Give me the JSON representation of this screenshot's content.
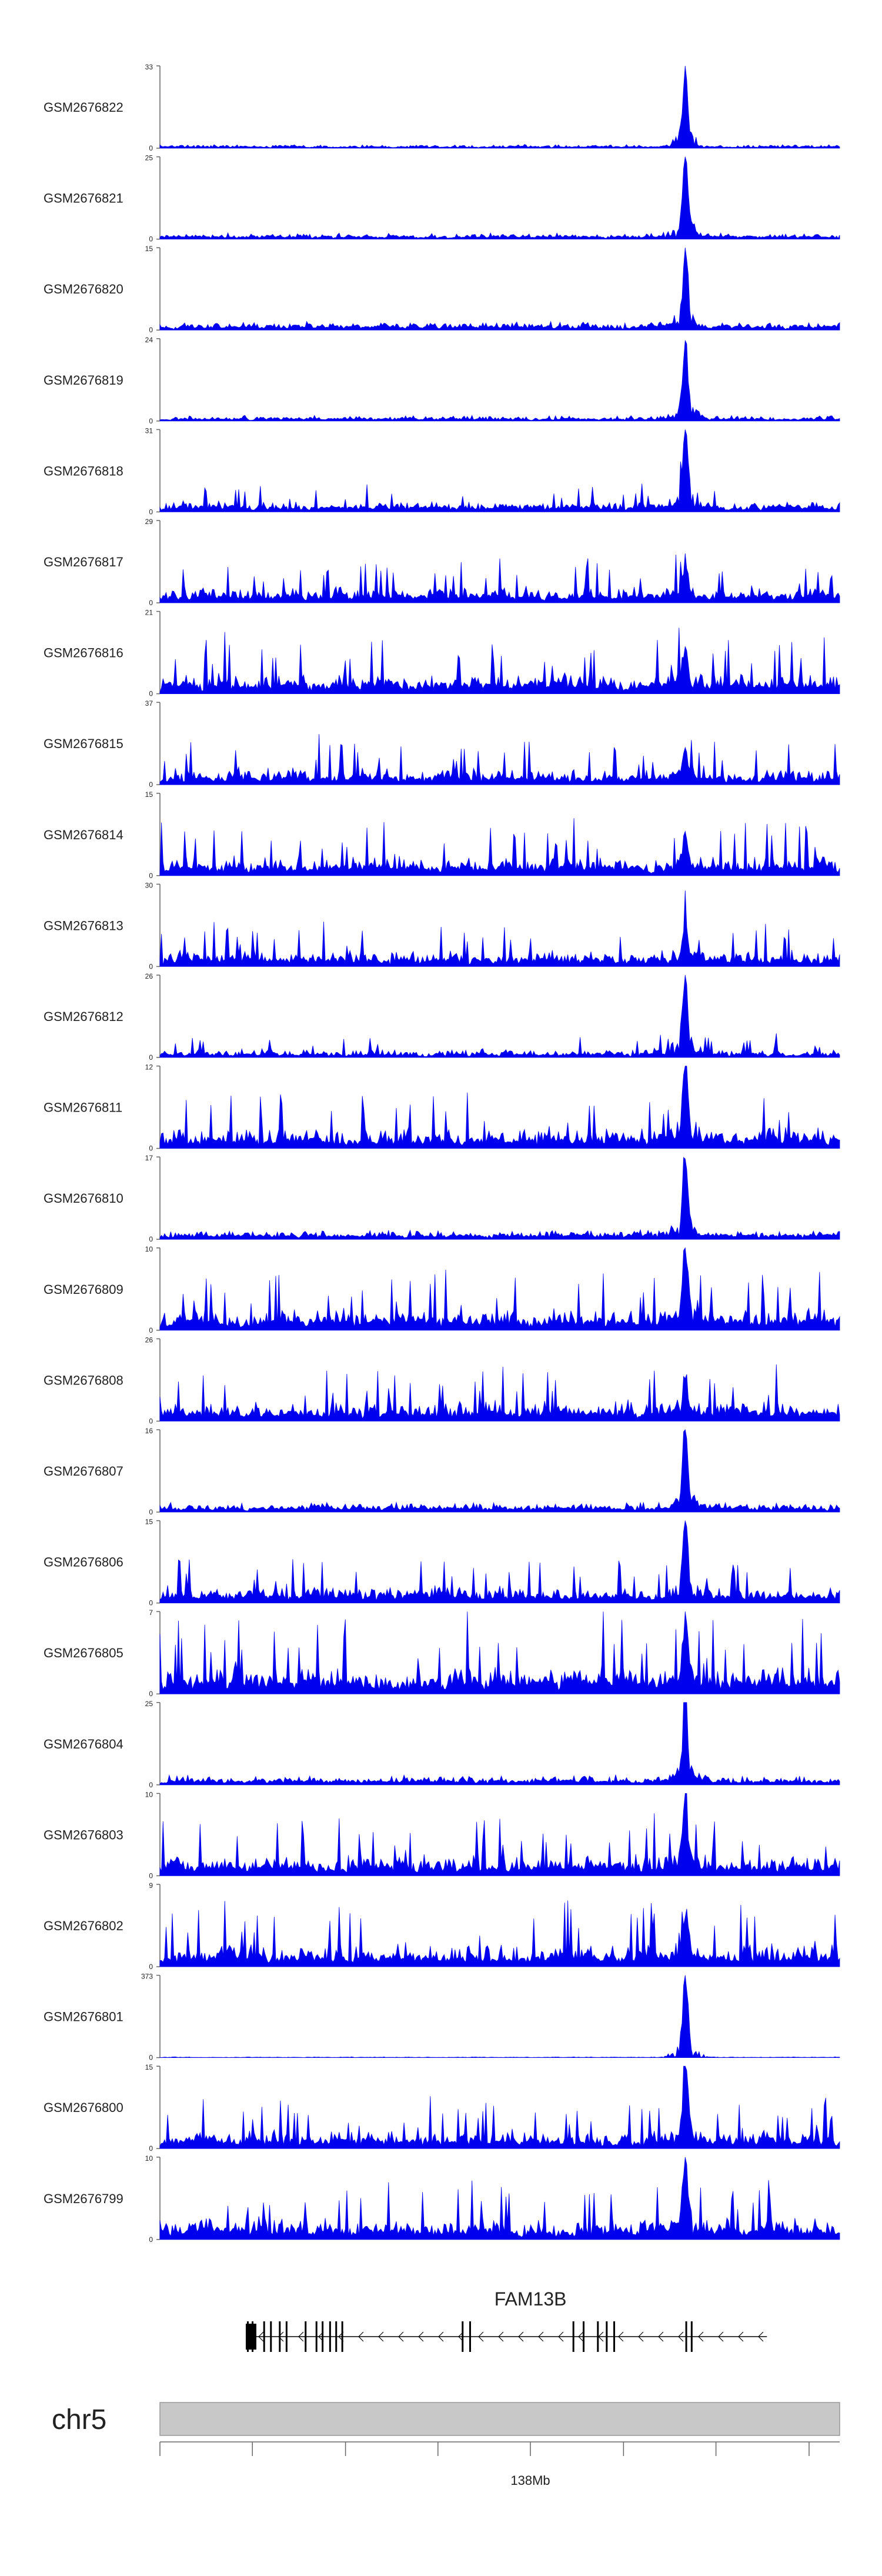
{
  "colors": {
    "signal": "#0000ee",
    "gene": "#000000",
    "ideogram": "#c8c8c8",
    "axis": "#666666"
  },
  "chart_data": {
    "type": "area",
    "title": "",
    "tracks": [
      {
        "name": "GSM2676822",
        "ymax": "33",
        "peak": 1.0,
        "noise": 0.1,
        "spiky": false
      },
      {
        "name": "GSM2676821",
        "ymax": "25",
        "peak": 1.0,
        "noise": 0.16,
        "spiky": false
      },
      {
        "name": "GSM2676820",
        "ymax": "15",
        "peak": 0.95,
        "noise": 0.22,
        "spiky": false
      },
      {
        "name": "GSM2676819",
        "ymax": "24",
        "peak": 0.95,
        "noise": 0.14,
        "spiky": false
      },
      {
        "name": "GSM2676818",
        "ymax": "31",
        "peak": 1.0,
        "noise": 0.28,
        "spiky": true
      },
      {
        "name": "GSM2676817",
        "ymax": "29",
        "peak": 0.4,
        "noise": 0.45,
        "spiky": true
      },
      {
        "name": "GSM2676816",
        "ymax": "21",
        "peak": 0.45,
        "noise": 0.55,
        "spiky": true
      },
      {
        "name": "GSM2676815",
        "ymax": "37",
        "peak": 0.35,
        "noise": 0.45,
        "spiky": true
      },
      {
        "name": "GSM2676814",
        "ymax": "15",
        "peak": 0.4,
        "noise": 0.55,
        "spiky": true
      },
      {
        "name": "GSM2676813",
        "ymax": "30",
        "peak": 0.4,
        "noise": 0.45,
        "spiky": true
      },
      {
        "name": "GSM2676812",
        "ymax": "26",
        "peak": 0.95,
        "noise": 0.22,
        "spiky": true
      },
      {
        "name": "GSM2676811",
        "ymax": "12",
        "peak": 0.95,
        "noise": 0.55,
        "spiky": true
      },
      {
        "name": "GSM2676810",
        "ymax": "17",
        "peak": 0.95,
        "noise": 0.25,
        "spiky": false
      },
      {
        "name": "GSM2676809",
        "ymax": "10",
        "peak": 0.95,
        "noise": 0.6,
        "spiky": true
      },
      {
        "name": "GSM2676808",
        "ymax": "26",
        "peak": 0.45,
        "noise": 0.55,
        "spiky": true
      },
      {
        "name": "GSM2676807",
        "ymax": "16",
        "peak": 0.95,
        "noise": 0.25,
        "spiky": false
      },
      {
        "name": "GSM2676806",
        "ymax": "15",
        "peak": 0.95,
        "noise": 0.45,
        "spiky": true
      },
      {
        "name": "GSM2676805",
        "ymax": "7",
        "peak": 0.75,
        "noise": 0.75,
        "spiky": true
      },
      {
        "name": "GSM2676804",
        "ymax": "25",
        "peak": 0.95,
        "noise": 0.25,
        "spiky": false
      },
      {
        "name": "GSM2676803",
        "ymax": "10",
        "peak": 0.95,
        "noise": 0.6,
        "spiky": true
      },
      {
        "name": "GSM2676802",
        "ymax": "9",
        "peak": 0.55,
        "noise": 0.65,
        "spiky": true
      },
      {
        "name": "GSM2676801",
        "ymax": "373",
        "peak": 1.0,
        "noise": 0.02,
        "spiky": false
      },
      {
        "name": "GSM2676800",
        "ymax": "15",
        "peak": 0.95,
        "noise": 0.5,
        "spiky": true
      },
      {
        "name": "GSM2676799",
        "ymax": "10",
        "peak": 0.95,
        "noise": 0.6,
        "spiky": true
      }
    ],
    "ymin_label": "0",
    "peak_fraction": 0.773,
    "gene": {
      "name": "FAM13B",
      "strand": "-",
      "span": [
        0.128,
        0.893
      ],
      "exons": [
        0.128,
        0.135,
        0.152,
        0.162,
        0.175,
        0.185,
        0.213,
        0.229,
        0.238,
        0.249,
        0.258,
        0.267,
        0.444,
        0.455,
        0.607,
        0.622,
        0.643,
        0.656,
        0.667,
        0.773,
        0.781
      ]
    },
    "chromosome": "chr5",
    "axis_tick_label": "138Mb",
    "axis_tick_label_position": 0.545,
    "axis_ticks": [
      0.0,
      0.136,
      0.273,
      0.409,
      0.545,
      0.682,
      0.818,
      0.955
    ]
  }
}
